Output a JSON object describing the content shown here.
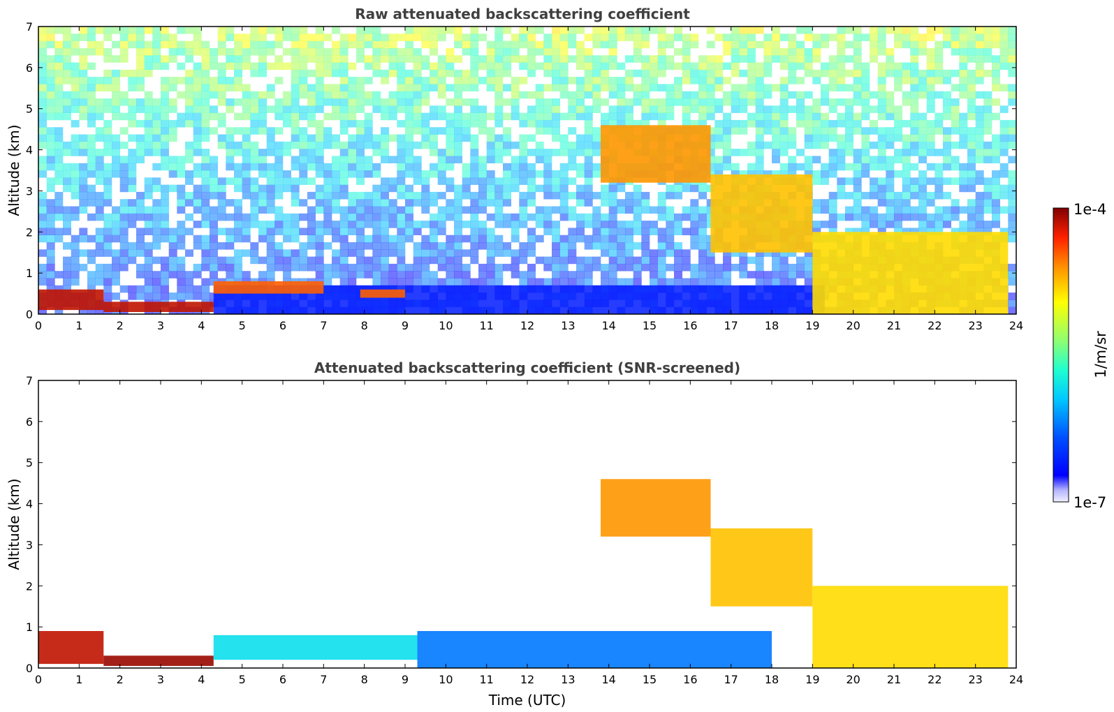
{
  "chart_data": [
    {
      "type": "heatmap",
      "title": "Raw attenuated backscattering coefficient",
      "xlabel": "",
      "ylabel": "Altitude (km)",
      "xlim": [
        0,
        24
      ],
      "ylim": [
        0,
        7
      ],
      "x_ticks": [
        "0",
        "1",
        "2",
        "3",
        "4",
        "5",
        "6",
        "7",
        "8",
        "9",
        "10",
        "11",
        "12",
        "13",
        "14",
        "15",
        "16",
        "17",
        "18",
        "19",
        "20",
        "21",
        "22",
        "23",
        "24"
      ],
      "y_ticks": [
        "0",
        "1",
        "2",
        "3",
        "4",
        "5",
        "6",
        "7"
      ],
      "features": [
        {
          "time": [
            0.0,
            1.6
          ],
          "alt": [
            0.1,
            0.6
          ],
          "level": 0.95
        },
        {
          "time": [
            1.6,
            4.3
          ],
          "alt": [
            0.05,
            0.3
          ],
          "level": 0.95
        },
        {
          "time": [
            4.3,
            7.0
          ],
          "alt": [
            0.5,
            0.8
          ],
          "level": 0.85
        },
        {
          "time": [
            7.9,
            9.0
          ],
          "alt": [
            0.4,
            0.6
          ],
          "level": 0.85
        },
        {
          "time": [
            13.8,
            16.5
          ],
          "alt": [
            3.2,
            4.6
          ],
          "level": 0.8
        },
        {
          "time": [
            16.5,
            19.0
          ],
          "alt": [
            1.5,
            3.4
          ],
          "level": 0.75
        },
        {
          "time": [
            19.0,
            23.8
          ],
          "alt": [
            0.0,
            2.0
          ],
          "level": 0.72
        }
      ],
      "background": "noisy",
      "grid": false
    },
    {
      "type": "heatmap",
      "title": "Attenuated backscattering coefficient (SNR-screened)",
      "xlabel": "Time (UTC)",
      "ylabel": "Altitude (km)",
      "xlim": [
        0,
        24
      ],
      "ylim": [
        0,
        7
      ],
      "x_ticks": [
        "0",
        "1",
        "2",
        "3",
        "4",
        "5",
        "6",
        "7",
        "8",
        "9",
        "10",
        "11",
        "12",
        "13",
        "14",
        "15",
        "16",
        "17",
        "18",
        "19",
        "20",
        "21",
        "22",
        "23",
        "24"
      ],
      "y_ticks": [
        "0",
        "1",
        "2",
        "3",
        "4",
        "5",
        "6",
        "7"
      ],
      "features": [
        {
          "time": [
            0.0,
            1.6
          ],
          "alt": [
            0.1,
            0.9
          ],
          "level": 0.95
        },
        {
          "time": [
            1.6,
            4.3
          ],
          "alt": [
            0.05,
            0.3
          ],
          "level": 0.98
        },
        {
          "time": [
            4.3,
            9.3
          ],
          "alt": [
            0.2,
            0.8
          ],
          "level": 0.35
        },
        {
          "time": [
            9.3,
            18.0
          ],
          "alt": [
            0.0,
            0.9
          ],
          "level": 0.2
        },
        {
          "time": [
            13.8,
            16.5
          ],
          "alt": [
            3.2,
            4.6
          ],
          "level": 0.8
        },
        {
          "time": [
            16.5,
            19.0
          ],
          "alt": [
            1.5,
            3.4
          ],
          "level": 0.75
        },
        {
          "time": [
            19.0,
            23.8
          ],
          "alt": [
            0.0,
            2.0
          ],
          "level": 0.72
        }
      ],
      "background": "clean",
      "grid": false
    }
  ],
  "colorbar": {
    "label": "1/m/sr",
    "max_label": "1e-4",
    "min_label": "1e-7",
    "colors": [
      "#f0f0ff",
      "#c8c8ff",
      "#8c8cff",
      "#0000ff",
      "#0040ff",
      "#0080ff",
      "#00c0ff",
      "#00ffff",
      "#40ffc0",
      "#80ff80",
      "#c0ff40",
      "#ffff00",
      "#ffc000",
      "#ff8000",
      "#ff4000",
      "#ff0000",
      "#c00000",
      "#800000"
    ]
  }
}
